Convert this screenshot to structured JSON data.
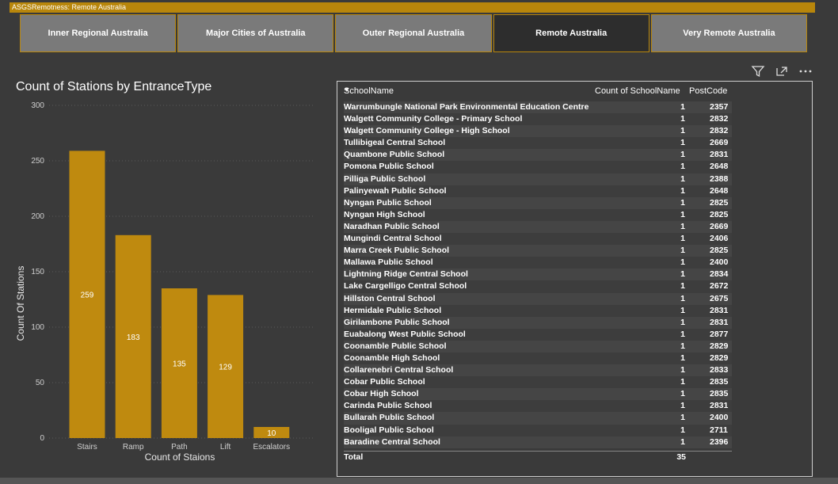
{
  "slicer": {
    "header": "ASGSRemotness: Remote Australia",
    "buttons": [
      "Inner Regional Australia",
      "Major Cities of Australia",
      "Outer Regional Australia",
      "Remote Australia",
      "Very Remote Australia"
    ],
    "selected_index": 3
  },
  "toolbar": {
    "icons": [
      "filter-icon",
      "focus-mode-icon",
      "more-options-icon"
    ]
  },
  "chart_data": {
    "type": "bar",
    "title": "Count of Stations by EntranceType",
    "xlabel": "Count of Staions",
    "ylabel": "Count Of Stations",
    "categories": [
      "Stairs",
      "Ramp",
      "Path",
      "Lift",
      "Escalators"
    ],
    "values": [
      259,
      183,
      135,
      129,
      10
    ],
    "ylim": [
      0,
      300
    ],
    "yticks": [
      0,
      50,
      100,
      150,
      200,
      250,
      300
    ],
    "bar_color": "#bf8a0f",
    "grid": true
  },
  "table": {
    "columns": [
      "SchoolName",
      "Count of SchoolName",
      "PostCode"
    ],
    "rows": [
      [
        "Warrumbungle National Park Environmental Education Centre",
        "1",
        "2357"
      ],
      [
        "Walgett Community College - Primary School",
        "1",
        "2832"
      ],
      [
        "Walgett Community College - High School",
        "1",
        "2832"
      ],
      [
        "Tullibigeal Central School",
        "1",
        "2669"
      ],
      [
        "Quambone Public School",
        "1",
        "2831"
      ],
      [
        "Pomona Public School",
        "1",
        "2648"
      ],
      [
        "Pilliga Public School",
        "1",
        "2388"
      ],
      [
        "Palinyewah Public School",
        "1",
        "2648"
      ],
      [
        "Nyngan Public School",
        "1",
        "2825"
      ],
      [
        "Nyngan High School",
        "1",
        "2825"
      ],
      [
        "Naradhan Public School",
        "1",
        "2669"
      ],
      [
        "Mungindi Central School",
        "1",
        "2406"
      ],
      [
        "Marra Creek Public School",
        "1",
        "2825"
      ],
      [
        "Mallawa Public School",
        "1",
        "2400"
      ],
      [
        "Lightning Ridge Central School",
        "1",
        "2834"
      ],
      [
        "Lake Cargelligo Central School",
        "1",
        "2672"
      ],
      [
        "Hillston Central School",
        "1",
        "2675"
      ],
      [
        "Hermidale Public School",
        "1",
        "2831"
      ],
      [
        "Girilambone Public School",
        "1",
        "2831"
      ],
      [
        "Euabalong West Public School",
        "1",
        "2877"
      ],
      [
        "Coonamble Public School",
        "1",
        "2829"
      ],
      [
        "Coonamble High School",
        "1",
        "2829"
      ],
      [
        "Collarenebri Central School",
        "1",
        "2833"
      ],
      [
        "Cobar Public School",
        "1",
        "2835"
      ],
      [
        "Cobar High School",
        "1",
        "2835"
      ],
      [
        "Carinda Public School",
        "1",
        "2831"
      ],
      [
        "Bullarah Public School",
        "1",
        "2400"
      ],
      [
        "Booligal Public School",
        "1",
        "2711"
      ],
      [
        "Baradine Central School",
        "1",
        "2396"
      ]
    ],
    "total_label": "Total",
    "total_count": "35"
  }
}
